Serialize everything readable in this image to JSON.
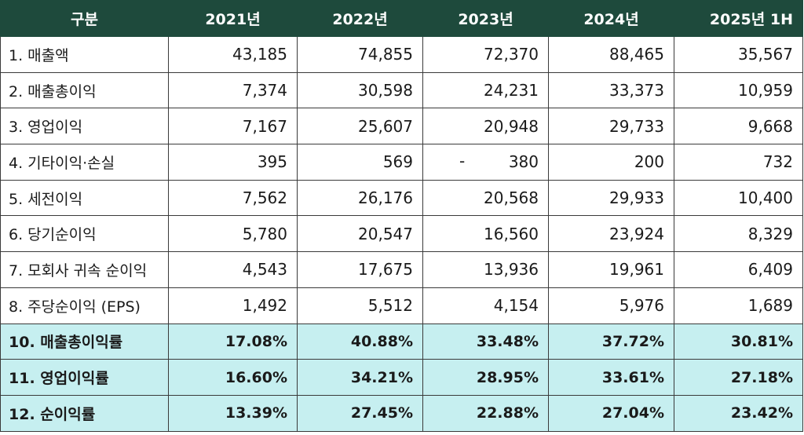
{
  "header": [
    "구분",
    "2021년",
    "2022년",
    "2023년",
    "2024년",
    "2025년 1H"
  ],
  "rows": [
    {
      "label": "1. 매출액",
      "values": [
        "43,185",
        "74,855",
        "72,370",
        "88,465",
        "35,567"
      ]
    },
    {
      "label": "2. 매출총이익",
      "values": [
        "7,374",
        "30,598",
        "24,231",
        "33,373",
        "10,959"
      ]
    },
    {
      "label": "3. 영업이익",
      "values": [
        "7,167",
        "25,607",
        "20,948",
        "29,733",
        "9,668"
      ]
    },
    {
      "label": "4. 기타이익·손실",
      "values": [
        "395",
        "569",
        "380",
        "200",
        "732"
      ],
      "neg_sign": "-"
    },
    {
      "label": "5. 세전이익",
      "values": [
        "7,562",
        "26,176",
        "20,568",
        "29,933",
        "10,400"
      ]
    },
    {
      "label": "6. 당기순이익",
      "values": [
        "5,780",
        "20,547",
        "16,560",
        "23,924",
        "8,329"
      ]
    },
    {
      "label": "7. 모회사 귀속 순이익",
      "values": [
        "4,543",
        "17,675",
        "13,936",
        "19,961",
        "6,409"
      ]
    },
    {
      "label": "8. 주당순이익 (EPS)",
      "values": [
        "1,492",
        "5,512",
        "4,154",
        "5,976",
        "1,689"
      ]
    },
    {
      "label": "10. 매출총이익률",
      "values": [
        "17.08%",
        "40.88%",
        "33.48%",
        "37.72%",
        "30.81%"
      ]
    },
    {
      "label": "11. 영업이익률",
      "values": [
        "16.60%",
        "34.21%",
        "28.95%",
        "33.61%",
        "27.18%"
      ]
    },
    {
      "label": "12. 순이익률",
      "values": [
        "13.39%",
        "27.45%",
        "22.88%",
        "27.04%",
        "23.42%"
      ]
    }
  ],
  "colors": {
    "header_bg": "#1e4a3c",
    "header_text": "#ffffff",
    "ratio_bg": "#c6eff0"
  }
}
